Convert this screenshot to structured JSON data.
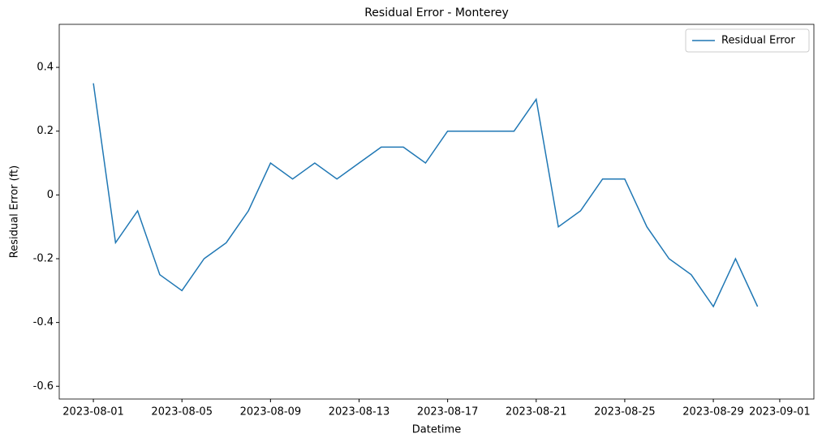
{
  "chart_data": {
    "type": "line",
    "title": "Residual Error - Monterey",
    "x_label": "Datetime",
    "y_label": "Residual Error (ft)",
    "x": [
      "2023-08-01",
      "2023-08-02",
      "2023-08-03",
      "2023-08-04",
      "2023-08-05",
      "2023-08-06",
      "2023-08-07",
      "2023-08-08",
      "2023-08-09",
      "2023-08-10",
      "2023-08-11",
      "2023-08-12",
      "2023-08-13",
      "2023-08-14",
      "2023-08-15",
      "2023-08-16",
      "2023-08-17",
      "2023-08-18",
      "2023-08-19",
      "2023-08-20",
      "2023-08-21",
      "2023-08-22",
      "2023-08-23",
      "2023-08-24",
      "2023-08-25",
      "2023-08-26",
      "2023-08-27",
      "2023-08-28",
      "2023-08-29",
      "2023-08-30",
      "2023-08-31"
    ],
    "series": [
      {
        "name": "Residual Error",
        "color": "#1f77b4",
        "values": [
          0.35,
          -0.15,
          -0.05,
          -0.25,
          -0.3,
          -0.2,
          -0.15,
          -0.05,
          0.1,
          0.05,
          0.1,
          0.05,
          0.1,
          0.15,
          0.15,
          0.1,
          0.2,
          0.2,
          0.2,
          0.2,
          0.3,
          -0.1,
          -0.05,
          0.05,
          0.05,
          -0.1,
          -0.2,
          -0.25,
          -0.35,
          -0.2,
          -0.35
        ]
      }
    ],
    "xlim": [
      "2023-07-30T11:00",
      "2023-09-02T13:00"
    ],
    "xticks": [
      "2023-08-01",
      "2023-08-05",
      "2023-08-09",
      "2023-08-13",
      "2023-08-17",
      "2023-08-21",
      "2023-08-25",
      "2023-08-29",
      "2023-09-01"
    ],
    "ylim": [
      -0.64,
      0.535
    ],
    "yticks": [
      -0.6,
      -0.4,
      -0.2,
      0,
      0.2,
      0.4
    ],
    "legend": "upper right"
  }
}
